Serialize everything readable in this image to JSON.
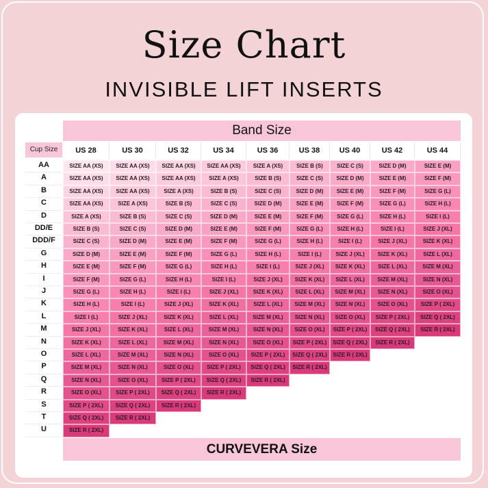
{
  "title": "Size Chart",
  "subtitle": "INVISIBLE LIFT INSERTS",
  "band_header": "Band Size",
  "cup_header": "Cup Size",
  "footer": "CURVEVERA Size",
  "colors": {
    "background": "#f3d3d6",
    "header_pink": "#f9c6d9",
    "cell_light": "#fde6ee",
    "cell_mid": "#f77fae",
    "cell_dark": "#cf2468"
  },
  "bands": [
    "US 28",
    "US 30",
    "US 32",
    "US 34",
    "US 36",
    "US 38",
    "US 40",
    "US 42",
    "US 44"
  ],
  "rows": [
    {
      "cup": "AA",
      "cells": [
        "SIZE AA (XS)",
        "SIZE AA (XS)",
        "SIZE AA (XS)",
        "SIZE AA (XS)",
        "SIZE A (XS)",
        "SIZE B (S)",
        "SIZE C (S)",
        "SIZE D (M)",
        "SIZE E (M)"
      ]
    },
    {
      "cup": "A",
      "cells": [
        "SIZE AA (XS)",
        "SIZE AA (XS)",
        "SIZE AA (XS)",
        "SIZE A (XS)",
        "SIZE B (S)",
        "SIZE C (S)",
        "SIZE D (M)",
        "SIZE E (M)",
        "SIZE F (M)"
      ]
    },
    {
      "cup": "B",
      "cells": [
        "SIZE AA (XS)",
        "SIZE AA (XS)",
        "SIZE A (XS)",
        "SIZE B (S)",
        "SIZE C (S)",
        "SIZE D (M)",
        "SIZE E (M)",
        "SIZE F (M)",
        "SIZE G (L)"
      ]
    },
    {
      "cup": "C",
      "cells": [
        "SIZE AA (XS)",
        "SIZE A (XS)",
        "SIZE B (S)",
        "SIZE C (S)",
        "SIZE D (M)",
        "SIZE E (M)",
        "SIZE F (M)",
        "SIZE G (L)",
        "SIZE H (L)"
      ]
    },
    {
      "cup": "D",
      "cells": [
        "SIZE A (XS)",
        "SIZE B (S)",
        "SIZE C (S)",
        "SIZE D (M)",
        "SIZE E (M)",
        "SIZE F (M)",
        "SIZE G (L)",
        "SIZE H (L)",
        "SIZE I (L)"
      ]
    },
    {
      "cup": "DD/E",
      "cells": [
        "SIZE B (S)",
        "SIZE C (S)",
        "SIZE D (M)",
        "SIZE E (M)",
        "SIZE F (M)",
        "SIZE G (L)",
        "SIZE H (L)",
        "SIZE I (L)",
        "SIZE J (XL)"
      ]
    },
    {
      "cup": "DDD/F",
      "cells": [
        "SIZE C (S)",
        "SIZE D (M)",
        "SIZE E (M)",
        "SIZE F (M)",
        "SIZE G (L)",
        "SIZE H (L)",
        "SIZE I (L)",
        "SIZE J (XL)",
        "SIZE K (XL)"
      ]
    },
    {
      "cup": "G",
      "cells": [
        "SIZE D (M)",
        "SIZE E (M)",
        "SIZE F (M)",
        "SIZE G (L)",
        "SIZE H (L)",
        "SIZE I (L)",
        "SIZE J (XL)",
        "SIZE K (XL)",
        "SIZE L (XL)"
      ]
    },
    {
      "cup": "H",
      "cells": [
        "SIZE E (M)",
        "SIZE F (M)",
        "SIZE G (L)",
        "SIZE H (L)",
        "SIZE I (L)",
        "SIZE J (XL)",
        "SIZE K (XL)",
        "SIZE L (XL)",
        "SIZE M (XL)"
      ]
    },
    {
      "cup": "I",
      "cells": [
        "SIZE F (M)",
        "SIZE G (L)",
        "SIZE H (L)",
        "SIZE I (L)",
        "SIZE J (XL)",
        "SIZE K (XL)",
        "SIZE L (XL)",
        "SIZE M (XL)",
        "SIZE N (XL)"
      ]
    },
    {
      "cup": "J",
      "cells": [
        "SIZE G (L)",
        "SIZE H (L)",
        "SIZE I (L)",
        "SIZE J (XL)",
        "SIZE K (XL)",
        "SIZE L (XL)",
        "SIZE M (XL)",
        "SIZE N (XL)",
        "SIZE O (XL)"
      ]
    },
    {
      "cup": "K",
      "cells": [
        "SIZE H (L)",
        "SIZE I (L)",
        "SIZE J (XL)",
        "SIZE K (XL)",
        "SIZE L (XL)",
        "SIZE M (XL)",
        "SIZE N (XL)",
        "SIZE O (XL)",
        "SIZE P ( 2XL)"
      ]
    },
    {
      "cup": "L",
      "cells": [
        "SIZE I (L)",
        "SIZE J (XL)",
        "SIZE K (XL)",
        "SIZE L (XL)",
        "SIZE M (XL)",
        "SIZE N (XL)",
        "SIZE O (XL)",
        "SIZE P ( 2XL)",
        "SIZE Q ( 2XL)"
      ]
    },
    {
      "cup": "M",
      "cells": [
        "SIZE J (XL)",
        "SIZE K (XL)",
        "SIZE L (XL)",
        "SIZE M (XL)",
        "SIZE N (XL)",
        "SIZE O (XL)",
        "SIZE P ( 2XL)",
        "SIZE Q ( 2XL)",
        "SIZE R ( 2XL)"
      ]
    },
    {
      "cup": "N",
      "cells": [
        "SIZE K (XL)",
        "SIZE L (XL)",
        "SIZE M (XL)",
        "SIZE N (XL)",
        "SIZE O (XL)",
        "SIZE P ( 2XL)",
        "SIZE Q ( 2XL)",
        "SIZE R ( 2XL)"
      ]
    },
    {
      "cup": "O",
      "cells": [
        "SIZE L (XL)",
        "SIZE M (XL)",
        "SIZE N (XL)",
        "SIZE O (XL)",
        "SIZE P ( 2XL)",
        "SIZE Q ( 2XL)",
        "SIZE R ( 2XL)"
      ]
    },
    {
      "cup": "P",
      "cells": [
        "SIZE M (XL)",
        "SIZE N (XL)",
        "SIZE O (XL)",
        "SIZE P ( 2XL)",
        "SIZE Q ( 2XL)",
        "SIZE R ( 2XL)"
      ]
    },
    {
      "cup": "Q",
      "cells": [
        "SIZE N (XL)",
        "SIZE O (XL)",
        "SIZE P ( 2XL)",
        "SIZE Q ( 2XL)",
        "SIZE R ( 2XL)"
      ]
    },
    {
      "cup": "R",
      "cells": [
        "SIZE O (XL)",
        "SIZE P ( 2XL)",
        "SIZE Q ( 2XL)",
        "SIZE R ( 2XL)"
      ]
    },
    {
      "cup": "S",
      "cells": [
        "SIZE P ( 2XL)",
        "SIZE Q ( 2XL)",
        "SIZE R ( 2XL)"
      ]
    },
    {
      "cup": "T",
      "cells": [
        "SIZE Q ( 2XL)",
        "SIZE R ( 2XL)"
      ]
    },
    {
      "cup": "U",
      "cells": [
        "SIZE R ( 2XL)"
      ]
    }
  ]
}
